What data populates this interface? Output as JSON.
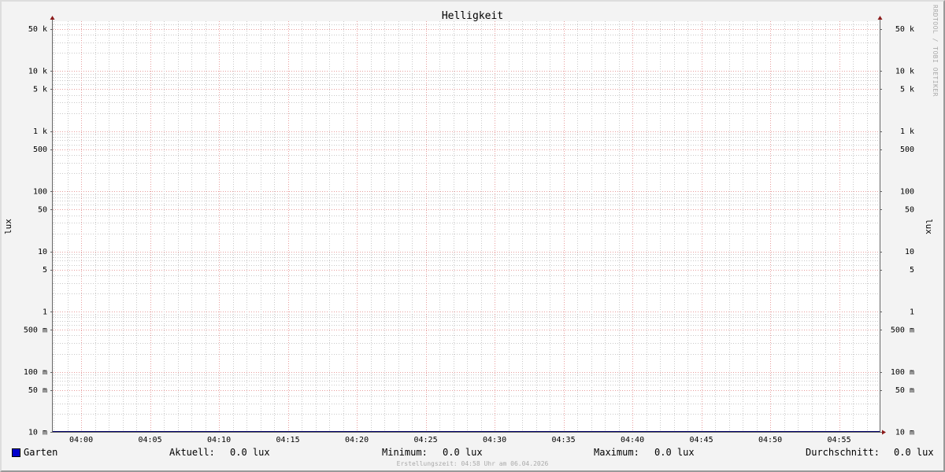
{
  "chart_data": {
    "type": "line",
    "title": "Helligkeit",
    "ylabel": "lux",
    "ylabel_right": "lux",
    "y_scale": "log",
    "ylim": [
      0.01,
      67000
    ],
    "y_ticks": [
      {
        "value": 50000,
        "label": "50 k"
      },
      {
        "value": 10000,
        "label": "10 k"
      },
      {
        "value": 5000,
        "label": "5 k"
      },
      {
        "value": 1000,
        "label": "1 k"
      },
      {
        "value": 500,
        "label": "500"
      },
      {
        "value": 100,
        "label": "100"
      },
      {
        "value": 50,
        "label": "50"
      },
      {
        "value": 10,
        "label": "10"
      },
      {
        "value": 5,
        "label": "5"
      },
      {
        "value": 1,
        "label": "1"
      },
      {
        "value": 0.5,
        "label": "500 m"
      },
      {
        "value": 0.1,
        "label": "100 m"
      },
      {
        "value": 0.05,
        "label": "50 m"
      },
      {
        "value": 0.01,
        "label": "10 m"
      }
    ],
    "x_ticks": [
      "04:00",
      "04:05",
      "04:10",
      "04:15",
      "04:20",
      "04:25",
      "04:30",
      "04:35",
      "04:40",
      "04:45",
      "04:50",
      "04:55"
    ],
    "xlim": [
      "03:58",
      "04:58"
    ],
    "grid": true,
    "series": [
      {
        "name": "Garten",
        "color": "#0000cc",
        "values": [
          0.0
        ]
      }
    ],
    "colors": {
      "major_grid": "#e89c9c",
      "minor_grid": "#c8c8c8",
      "axis": "#666666",
      "arrow": "#8b1a1a"
    }
  },
  "legend": {
    "series_name": "Garten",
    "aktuell_label": "Aktuell:",
    "aktuell_value": "0.0 lux",
    "minimum_label": "Minimum:",
    "minimum_value": "0.0 lux",
    "maximum_label": "Maximum:",
    "maximum_value": "0.0 lux",
    "avg_label": "Durchschnitt:",
    "avg_value": "0.0 lux"
  },
  "watermark": "RRDTOOL / TOBI OETIKER",
  "footer": "Erstellungszeit: 04:58 Uhr am 06.04.2026"
}
